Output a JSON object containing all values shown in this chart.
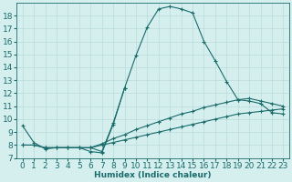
{
  "xlabel": "Humidex (Indice chaleur)",
  "background_color": "#d5efee",
  "line_color": "#1a6b6b",
  "grid_color": "#b8dcd9",
  "xlim": [
    -0.5,
    23.5
  ],
  "ylim": [
    7,
    19
  ],
  "xticks": [
    0,
    1,
    2,
    3,
    4,
    5,
    6,
    7,
    8,
    9,
    10,
    11,
    12,
    13,
    14,
    15,
    16,
    17,
    18,
    19,
    20,
    21,
    22,
    23
  ],
  "yticks": [
    7,
    8,
    9,
    10,
    11,
    12,
    13,
    14,
    15,
    16,
    17,
    18
  ],
  "series": [
    {
      "x": [
        0,
        1,
        2,
        3,
        4,
        5,
        6,
        7,
        8,
        9,
        10,
        11,
        12,
        13,
        14,
        15,
        16,
        17,
        18,
        19,
        20,
        21,
        22,
        23
      ],
      "y": [
        9.5,
        8.2,
        7.7,
        7.8,
        7.8,
        7.8,
        7.5,
        7.4,
        9.6,
        12.4,
        14.9,
        17.1,
        18.5,
        18.7,
        18.5,
        18.2,
        16.0,
        14.5,
        12.9,
        11.5,
        11.4,
        11.2,
        10.5,
        10.4
      ]
    },
    {
      "x": [
        6,
        7,
        8,
        9
      ],
      "y": [
        7.8,
        7.5,
        9.7,
        12.4
      ]
    },
    {
      "x": [
        0,
        1,
        2,
        3,
        4,
        5,
        6,
        7,
        8,
        9,
        10,
        11,
        12,
        13,
        14,
        15,
        16,
        17,
        18,
        19,
        20,
        21,
        22,
        23
      ],
      "y": [
        8.0,
        8.0,
        7.8,
        7.8,
        7.8,
        7.8,
        7.8,
        8.1,
        8.5,
        8.8,
        9.2,
        9.5,
        9.8,
        10.1,
        10.4,
        10.6,
        10.9,
        11.1,
        11.3,
        11.5,
        11.6,
        11.4,
        11.2,
        11.0
      ]
    },
    {
      "x": [
        0,
        1,
        2,
        3,
        4,
        5,
        6,
        7,
        8,
        9,
        10,
        11,
        12,
        13,
        14,
        15,
        16,
        17,
        18,
        19,
        20,
        21,
        22,
        23
      ],
      "y": [
        8.0,
        8.0,
        7.8,
        7.8,
        7.8,
        7.8,
        7.8,
        8.0,
        8.2,
        8.4,
        8.6,
        8.8,
        9.0,
        9.2,
        9.4,
        9.6,
        9.8,
        10.0,
        10.2,
        10.4,
        10.5,
        10.6,
        10.7,
        10.8
      ]
    }
  ],
  "font_size": 6.5,
  "marker": "+",
  "marker_size": 3,
  "linewidth": 0.8
}
